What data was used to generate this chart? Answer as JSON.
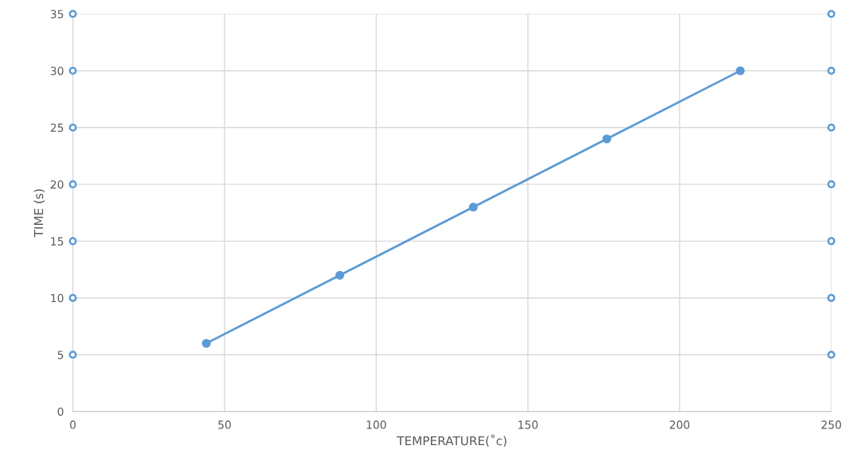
{
  "chart_data": {
    "type": "line",
    "xlabel": "TEMPERATURE(˚c)",
    "ylabel": "TIME (s)",
    "series": [
      {
        "color": "#5b9bd5",
        "x": [
          44,
          88,
          132,
          176,
          220
        ],
        "values": [
          6,
          12,
          18,
          24,
          30
        ],
        "marker": "circle"
      },
      {
        "type": "scatter",
        "color": "#5b9bd5",
        "x": [
          0,
          0,
          0,
          0,
          0,
          0,
          0
        ],
        "values": [
          5,
          10,
          15,
          20,
          25,
          30,
          35
        ],
        "marker": "circle"
      },
      {
        "type": "scatter",
        "color": "#5b9bd5",
        "x": [
          250,
          250,
          250,
          250,
          250,
          250,
          250
        ],
        "values": [
          5,
          10,
          15,
          20,
          25,
          30,
          35
        ],
        "marker": "circle"
      }
    ],
    "xlim": [
      0,
      250
    ],
    "xticks": [
      0,
      50,
      100,
      150,
      200,
      250
    ],
    "ylim": [
      0,
      35
    ],
    "yticks": [
      0,
      5,
      10,
      15,
      20,
      25,
      30,
      35
    ],
    "grid": true,
    "line_style": "solid"
  }
}
